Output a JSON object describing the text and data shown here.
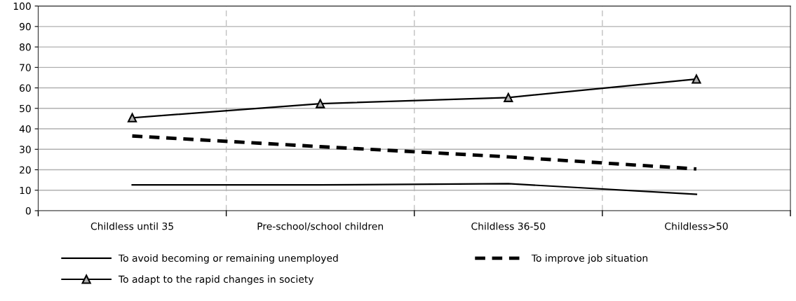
{
  "chart_data": {
    "type": "line",
    "categories": [
      "Childless until 35",
      "Pre-school/school children",
      "Childless 36-50",
      "Childless>50"
    ],
    "series": [
      {
        "name": "To avoid becoming or remaining unemployed",
        "color": "#000000",
        "values": [
          12.6,
          12.6,
          13.2,
          8.0
        ],
        "line_style": "solid",
        "marker": "none"
      },
      {
        "name": "To improve job situation",
        "color": "#000000",
        "values": [
          36.5,
          31.3,
          26.3,
          20.4
        ],
        "line_style": "dashed",
        "marker": "none"
      },
      {
        "name": "To adapt to the rapid changes in society",
        "color": "#000000",
        "values": [
          45.4,
          52.3,
          55.3,
          64.3
        ],
        "line_style": "solid",
        "marker": "triangle"
      }
    ],
    "ylim": [
      0,
      100
    ],
    "yticks": [
      0,
      10,
      20,
      30,
      40,
      50,
      60,
      70,
      80,
      90,
      100
    ],
    "grid": true,
    "legend": "bottom"
  }
}
